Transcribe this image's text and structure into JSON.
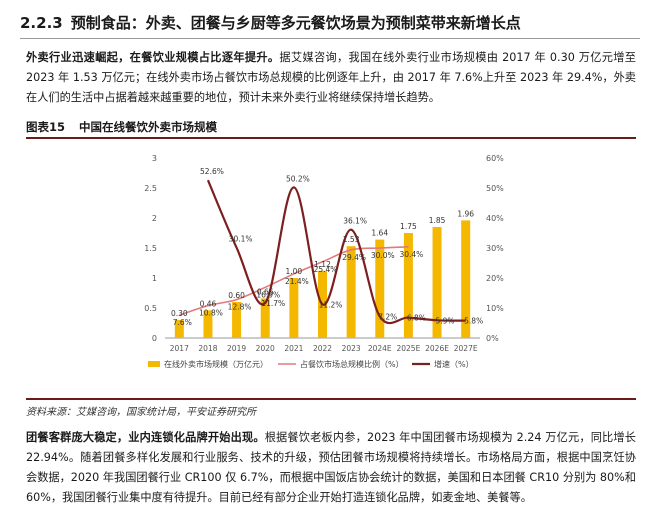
{
  "section": {
    "number": "2.2.3",
    "title": "预制食品：外卖、团餐与乡厨等多元餐饮场景为预制菜带来新增长点"
  },
  "paragraph1": {
    "lead": "外卖行业迅速崛起，在餐饮业规模占比逐年提升。",
    "body": "据艾媒咨询，我国在线外卖行业市场规模由 2017 年 0.30 万亿元增至 2023 年 1.53 万亿元；在线外卖市场占餐饮市场总规模的比例逐年上升，由 2017 年 7.6%上升至 2023 年 29.4%，外卖在人们的生活中占据着越来越重要的地位，预计未来外卖行业将继续保持增长趋势。"
  },
  "figure": {
    "label": "图表15",
    "title": "中国在线餐饮外卖市场规模",
    "source": "资料来源：艾媒咨询，国家统计局，平安证券研究所"
  },
  "paragraph2": {
    "lead": "团餐客群庞大稳定，业内连锁化品牌开始出现。",
    "body": "根据餐饮老板内参，2023 年中国团餐市场规模为 2.24 万亿元，同比增长 22.94%。随着团餐多样化发展和行业服务、技术的升级，预估团餐市场规模将持续增长。市场格局方面，根据中国烹饪协会数据，2020 年我国团餐行业 CR100 仅 6.7%，而根据中国饭店协会统计的数据，美国和日本团餐 CR10 分别为 80%和 60%，我国团餐行业集中度有待提升。目前已经有部分企业开始打造连锁化品牌，如麦金地、美餐等。"
  },
  "chart_data": {
    "type": "bar",
    "categories": [
      "2017",
      "2018",
      "2019",
      "2020",
      "2021",
      "2022",
      "2023",
      "2024E",
      "2025E",
      "2026E",
      "2027E"
    ],
    "y_left": {
      "ticks": [
        "0",
        "0.5",
        "1",
        "1.5",
        "2",
        "2.5",
        "3"
      ],
      "range": [
        0,
        3
      ]
    },
    "y_right": {
      "ticks": [
        "0%",
        "10%",
        "20%",
        "30%",
        "40%",
        "50%",
        "60%"
      ],
      "range": [
        0,
        60
      ]
    },
    "series": [
      {
        "name": "在线外卖市场规模（万亿元）",
        "type": "bar",
        "axis": "left",
        "color": "#f5b800",
        "values": [
          0.3,
          0.46,
          0.6,
          0.66,
          1.0,
          1.12,
          1.53,
          1.64,
          1.75,
          1.85,
          1.96
        ],
        "labels": [
          "0.30",
          "0.46",
          "0.60",
          "0.66",
          "1.00",
          "1.12",
          "1.53",
          "1.64",
          "1.75",
          "1.85",
          "1.96"
        ]
      },
      {
        "name": "占餐饮市场总规模比例（%）",
        "type": "line",
        "axis": "right",
        "color": "#e07a7a",
        "values": [
          7.6,
          10.8,
          12.8,
          16.9,
          21.4,
          25.4,
          29.4,
          30.0,
          30.4,
          null,
          null
        ],
        "labels": [
          "7.6%",
          "10.8%",
          "12.8%",
          "16.9%",
          "21.4%",
          "25.4%",
          "29.4%",
          "30.0%",
          "30.4%",
          "",
          ""
        ]
      },
      {
        "name": "增速（%）",
        "type": "line",
        "axis": "right",
        "color": "#7b1f1f",
        "values": [
          null,
          52.6,
          30.1,
          11.7,
          50.2,
          11.2,
          36.1,
          7.2,
          6.8,
          5.9,
          5.8
        ],
        "labels": [
          "",
          "52.6%",
          "30.1%",
          "11.7%",
          "50.2%",
          "11.2%",
          "36.1%",
          "7.2%",
          "6.8%",
          "5.9%",
          "5.8%"
        ]
      }
    ],
    "legend_position": "bottom",
    "grid": false
  }
}
